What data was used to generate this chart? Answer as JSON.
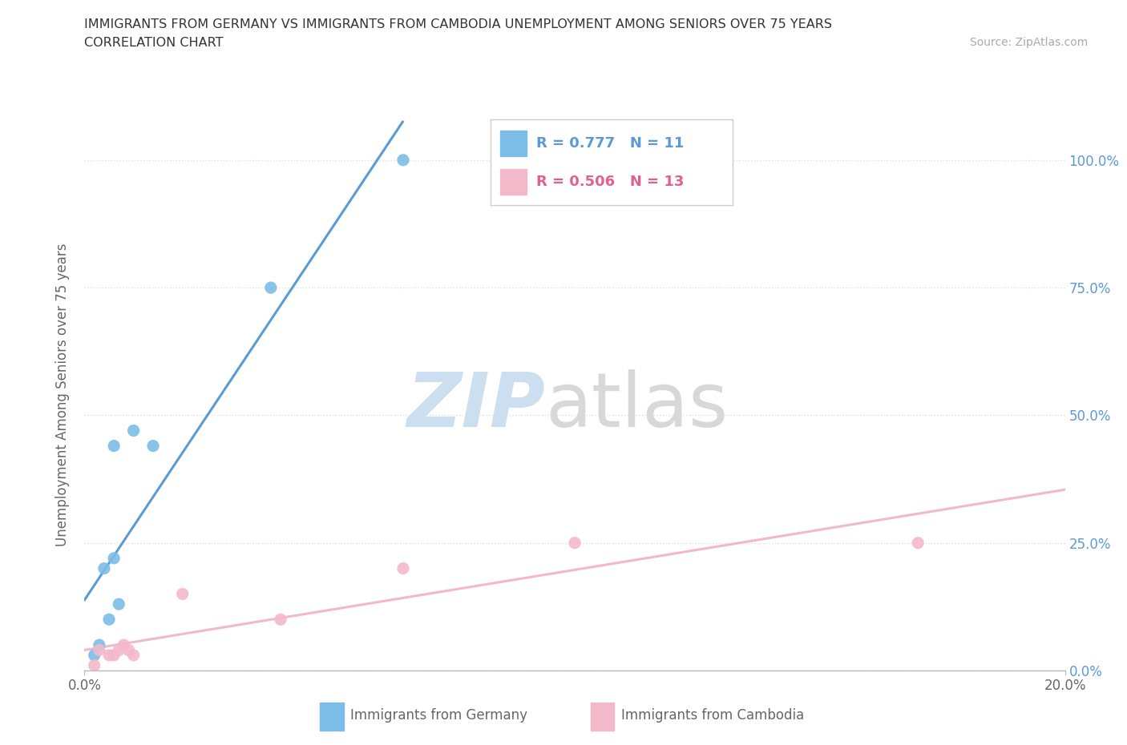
{
  "title_line1": "IMMIGRANTS FROM GERMANY VS IMMIGRANTS FROM CAMBODIA UNEMPLOYMENT AMONG SENIORS OVER 75 YEARS",
  "title_line2": "CORRELATION CHART",
  "source": "Source: ZipAtlas.com",
  "ylabel": "Unemployment Among Seniors over 75 years",
  "xlim": [
    0.0,
    0.2
  ],
  "ylim": [
    0.0,
    1.08
  ],
  "germany_color": "#7bbde8",
  "germany_color_dark": "#5b9bd5",
  "cambodia_color": "#f4b8cb",
  "cambodia_color_dark": "#e06090",
  "germany_R": "0.777",
  "germany_N": "11",
  "cambodia_R": "0.506",
  "cambodia_N": "13",
  "germany_scatter_x": [
    0.002,
    0.003,
    0.004,
    0.005,
    0.006,
    0.006,
    0.007,
    0.01,
    0.014,
    0.038,
    0.065
  ],
  "germany_scatter_y": [
    0.03,
    0.05,
    0.2,
    0.1,
    0.22,
    0.44,
    0.13,
    0.47,
    0.44,
    0.75,
    1.0
  ],
  "cambodia_scatter_x": [
    0.002,
    0.003,
    0.005,
    0.006,
    0.007,
    0.008,
    0.009,
    0.01,
    0.02,
    0.04,
    0.065,
    0.1,
    0.17
  ],
  "cambodia_scatter_y": [
    0.01,
    0.04,
    0.03,
    0.03,
    0.04,
    0.05,
    0.04,
    0.03,
    0.15,
    0.1,
    0.2,
    0.25,
    0.25
  ],
  "watermark_zip": "ZIP",
  "watermark_atlas": "atlas",
  "ytick_values": [
    0.0,
    0.25,
    0.5,
    0.75,
    1.0
  ],
  "ytick_labels": [
    "0.0%",
    "25.0%",
    "50.0%",
    "75.0%",
    "100.0%"
  ],
  "xtick_values": [
    0.0,
    0.2
  ],
  "xtick_labels": [
    "0.0%",
    "20.0%"
  ],
  "background_color": "#ffffff",
  "grid_color": "#e0e0e0",
  "spine_color": "#bbbbbb",
  "tick_label_color": "#666666"
}
